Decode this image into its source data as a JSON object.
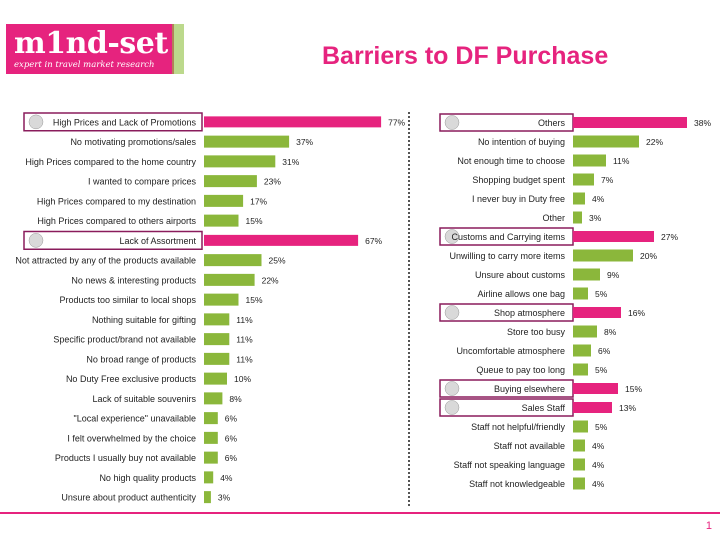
{
  "slide": {
    "logo_text": "m1nd-set",
    "logo_tagline": "expert in travel market research",
    "title": "Barriers to DF Purchase",
    "page_number": "1",
    "colors": {
      "highlight": "#e6237e",
      "bar": "#8bb73b",
      "text": "#222222"
    }
  },
  "chart_data": [
    {
      "type": "bar",
      "orientation": "horizontal",
      "xlim": [
        0,
        100
      ],
      "categories": [
        "High Prices and Lack of Promotions",
        "No motivating promotions/sales",
        "High Prices compared to the home country",
        "I wanted to compare prices",
        "High Prices compared to my destination",
        "High Prices compared to others airports",
        "Lack of Assortment",
        "Not attracted by any of the products available",
        "No news & interesting products",
        "Products too similar to local shops",
        "Nothing suitable for gifting",
        "Specific product/brand not available",
        "No broad range of products",
        "No Duty Free exclusive products",
        "Lack of suitable souvenirs",
        "\"Local experience\" unavailable",
        "I felt overwhelmed by the choice",
        "Products I usually buy not available",
        "No high quality products",
        "Unsure about product authenticity"
      ],
      "values": [
        77,
        37,
        31,
        23,
        17,
        15,
        67,
        25,
        22,
        15,
        11,
        11,
        11,
        10,
        8,
        6,
        6,
        6,
        4,
        3
      ],
      "value_labels": [
        "77%",
        "37%",
        "31%",
        "23%",
        "17%",
        "15%",
        "67%",
        "25%",
        "22%",
        "15%",
        "11%",
        "11%",
        "11%",
        "10%",
        "8%",
        "6%",
        "6%",
        "6%",
        "4%",
        "3%"
      ],
      "highlighted": [
        0,
        6
      ]
    },
    {
      "type": "bar",
      "orientation": "horizontal",
      "xlim": [
        0,
        100
      ],
      "categories": [
        "Others",
        "No intention of buying",
        "Not enough time to choose",
        "Shopping budget spent",
        "I never buy in Duty free",
        "Other",
        "Customs and Carrying items",
        "Unwilling to carry more items",
        "Unsure about customs",
        "Airline allows one bag",
        "Shop atmosphere",
        "Store too busy",
        "Uncomfortable atmosphere",
        "Queue to pay too long",
        "Buying elsewhere",
        "Sales Staff",
        "Staff  not helpful/friendly",
        "Staff not available",
        "Staff not speaking language",
        "Staff  not knowledgeable"
      ],
      "values": [
        38,
        22,
        11,
        7,
        4,
        3,
        27,
        20,
        9,
        5,
        16,
        8,
        6,
        5,
        15,
        13,
        5,
        4,
        4,
        4
      ],
      "value_labels": [
        "38%",
        "22%",
        "11%",
        "7%",
        "4%",
        "3%",
        "27%",
        "20%",
        "9%",
        "5%",
        "16%",
        "8%",
        "6%",
        "5%",
        "15%",
        "13%",
        "5%",
        "4%",
        "4%",
        "4%"
      ],
      "highlighted": [
        0,
        6,
        10,
        14,
        15
      ]
    }
  ]
}
